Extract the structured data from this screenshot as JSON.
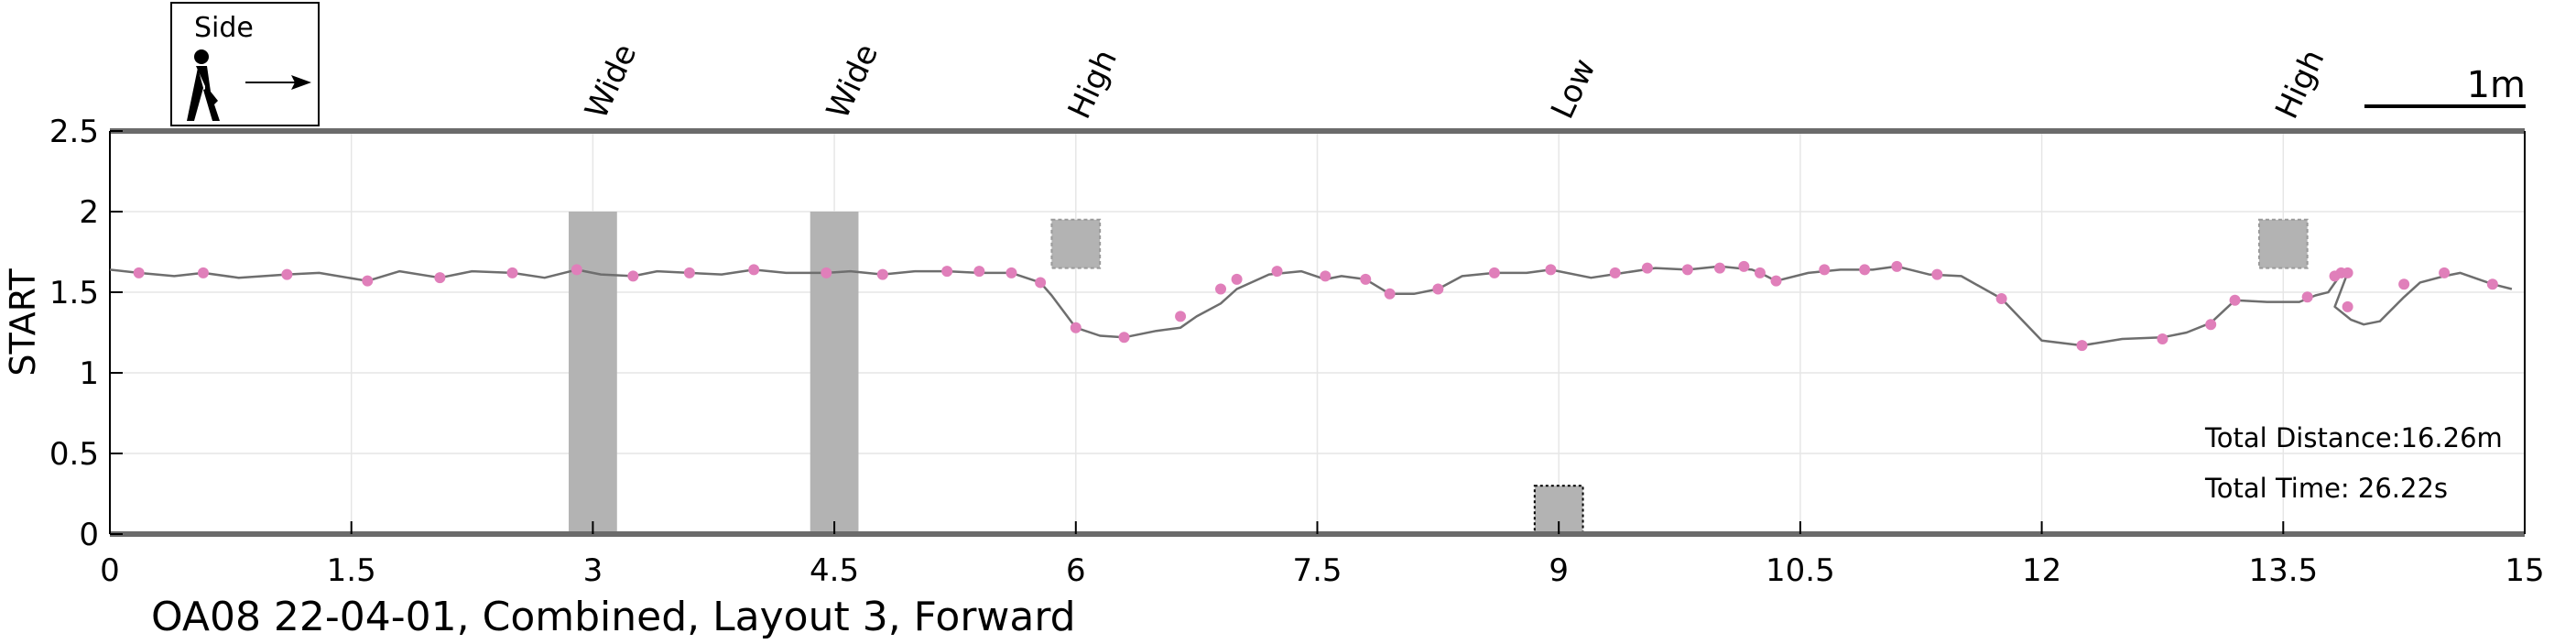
{
  "legend": {
    "label": "Side",
    "icon": "walking-person-icon",
    "arrow": "right-arrow-icon"
  },
  "scale_bar": {
    "label": "1m"
  },
  "info": {
    "total_distance": "Total Distance:16.26m",
    "total_time": "Total Time: 26.22s"
  },
  "caption": "OA08 22-04-01, Combined, Layout 3, Forward",
  "colors": {
    "line": "#6e6e6e",
    "marker": "#e07fba",
    "obstacle": "#b3b3b3",
    "grid": "#e6e6e6",
    "axis": "#6b6b6b"
  },
  "chart_data": {
    "type": "line",
    "title": "",
    "xlabel": "",
    "ylabel": "START",
    "xlim": [
      0,
      15
    ],
    "ylim": [
      0,
      2.5
    ],
    "grid": true,
    "x_ticks": [
      0,
      1.5,
      3,
      4.5,
      6,
      7.5,
      9,
      10.5,
      12,
      13.5,
      15
    ],
    "x_tick_labels": [
      "0",
      "1.5",
      "3",
      "4.5",
      "6",
      "7.5",
      "9",
      "10.5",
      "12",
      "13.5",
      "15"
    ],
    "y_ticks": [
      0,
      0.5,
      1,
      1.5,
      2,
      2.5
    ],
    "y_tick_labels": [
      "0",
      "0.5",
      "1",
      "1.5",
      "2",
      "2.5"
    ],
    "obstacles": [
      {
        "label": "Wide",
        "x0": 2.85,
        "x1": 3.15,
        "y0": 0,
        "y1": 2.0,
        "style": "bar"
      },
      {
        "label": "Wide",
        "x0": 4.35,
        "x1": 4.65,
        "y0": 0,
        "y1": 2.0,
        "style": "bar"
      },
      {
        "label": "High",
        "x0": 5.85,
        "x1": 6.15,
        "y0": 1.65,
        "y1": 1.95,
        "style": "high"
      },
      {
        "label": "Low",
        "x0": 8.85,
        "x1": 9.15,
        "y0": 0,
        "y1": 0.3,
        "style": "low"
      },
      {
        "label": "High",
        "x0": 13.35,
        "x1": 13.65,
        "y0": 1.65,
        "y1": 1.95,
        "style": "high"
      }
    ],
    "series": [
      {
        "x": [
          0,
          0.18,
          0.4,
          0.58,
          0.8,
          1.1,
          1.3,
          1.6,
          1.8,
          2.05,
          2.25,
          2.5,
          2.7,
          2.9,
          3.05,
          3.25,
          3.4,
          3.6,
          3.8,
          4.0,
          4.2,
          4.45,
          4.6,
          4.8,
          5.0,
          5.2,
          5.4,
          5.6,
          5.78,
          5.85,
          6.0,
          6.15,
          6.3,
          6.5,
          6.65,
          6.75,
          6.9,
          7.0,
          7.2,
          7.4,
          7.55,
          7.65,
          7.8,
          7.95,
          8.1,
          8.25,
          8.4,
          8.6,
          8.8,
          8.95,
          9.2,
          9.4,
          9.6,
          9.8,
          10.0,
          10.2,
          10.25,
          10.35,
          10.55,
          10.75,
          10.95,
          11.1,
          11.3,
          11.5,
          11.75,
          12.0,
          12.25,
          12.5,
          12.75,
          12.9,
          13.05,
          13.2,
          13.4,
          13.6,
          13.7,
          13.78,
          13.85,
          13.9,
          13.82,
          13.92,
          14.0,
          14.1,
          14.25,
          14.35,
          14.5,
          14.6,
          14.8,
          14.92
        ],
        "y": [
          1.64,
          1.62,
          1.6,
          1.62,
          1.59,
          1.61,
          1.62,
          1.57,
          1.63,
          1.59,
          1.63,
          1.62,
          1.59,
          1.64,
          1.61,
          1.6,
          1.63,
          1.62,
          1.61,
          1.64,
          1.62,
          1.62,
          1.63,
          1.61,
          1.63,
          1.63,
          1.62,
          1.62,
          1.56,
          1.48,
          1.28,
          1.23,
          1.22,
          1.26,
          1.28,
          1.35,
          1.43,
          1.52,
          1.61,
          1.63,
          1.58,
          1.6,
          1.58,
          1.49,
          1.49,
          1.52,
          1.6,
          1.62,
          1.62,
          1.64,
          1.59,
          1.62,
          1.65,
          1.64,
          1.66,
          1.64,
          1.62,
          1.57,
          1.62,
          1.64,
          1.64,
          1.66,
          1.61,
          1.6,
          1.46,
          1.2,
          1.17,
          1.21,
          1.22,
          1.25,
          1.31,
          1.45,
          1.44,
          1.44,
          1.48,
          1.5,
          1.6,
          1.62,
          1.41,
          1.33,
          1.3,
          1.32,
          1.47,
          1.56,
          1.6,
          1.62,
          1.55,
          1.52
        ],
        "markers_x": [
          0.18,
          0.58,
          1.1,
          1.6,
          2.05,
          2.5,
          2.9,
          3.25,
          3.6,
          4.0,
          4.45,
          4.8,
          5.2,
          5.4,
          5.6,
          5.78,
          6.0,
          6.3,
          6.65,
          6.9,
          7.0,
          7.25,
          7.55,
          7.8,
          7.95,
          8.25,
          8.6,
          8.95,
          9.35,
          9.55,
          9.8,
          10.0,
          10.15,
          10.25,
          10.35,
          10.65,
          10.9,
          11.1,
          11.35,
          11.75,
          12.25,
          12.75,
          13.05,
          13.2,
          13.65,
          13.82,
          13.86,
          13.9,
          13.9,
          14.25,
          14.5,
          14.8
        ],
        "markers_y": [
          1.62,
          1.62,
          1.61,
          1.57,
          1.59,
          1.62,
          1.64,
          1.6,
          1.62,
          1.64,
          1.62,
          1.61,
          1.63,
          1.63,
          1.62,
          1.56,
          1.28,
          1.22,
          1.35,
          1.52,
          1.58,
          1.63,
          1.6,
          1.58,
          1.49,
          1.52,
          1.62,
          1.64,
          1.62,
          1.65,
          1.64,
          1.65,
          1.66,
          1.62,
          1.57,
          1.64,
          1.64,
          1.66,
          1.61,
          1.46,
          1.17,
          1.21,
          1.3,
          1.45,
          1.47,
          1.6,
          1.62,
          1.62,
          1.41,
          1.55,
          1.62,
          1.55
        ]
      }
    ]
  }
}
